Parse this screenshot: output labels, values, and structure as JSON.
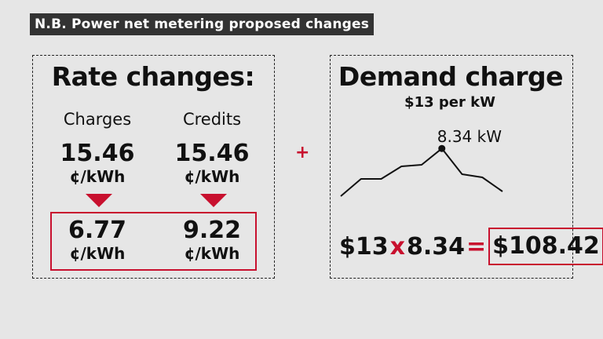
{
  "title": "N.B. Power net metering proposed changes",
  "rates": {
    "heading": "Rate changes:",
    "charges_label": "Charges",
    "credits_label": "Credits",
    "current": {
      "charges": "15.46",
      "credits": "15.46",
      "unit": "¢/kWh"
    },
    "proposed": {
      "charges": "6.77",
      "credits": "9.22",
      "unit": "¢/kWh"
    }
  },
  "plus_sign": "+",
  "demand": {
    "heading": "Demand charge",
    "rate_text": "$13 per kW",
    "peak_label": "8.34 kW",
    "equation": {
      "rate": "$13",
      "times": "x",
      "demand": "8.34",
      "equals": "=",
      "total": "$108.42"
    }
  },
  "colors": {
    "accent": "#c8102e",
    "title_bg": "#333333",
    "background": "#e6e6e6"
  },
  "chart_data": {
    "type": "line",
    "x": [
      0,
      1,
      2,
      3,
      4,
      5,
      6,
      7,
      8
    ],
    "y": [
      5.3,
      6.4,
      6.4,
      7.2,
      7.3,
      8.34,
      6.7,
      6.5,
      5.6
    ],
    "peak_index": 5,
    "peak_value": 8.34,
    "peak_label": "8.34 kW",
    "grid": false
  }
}
